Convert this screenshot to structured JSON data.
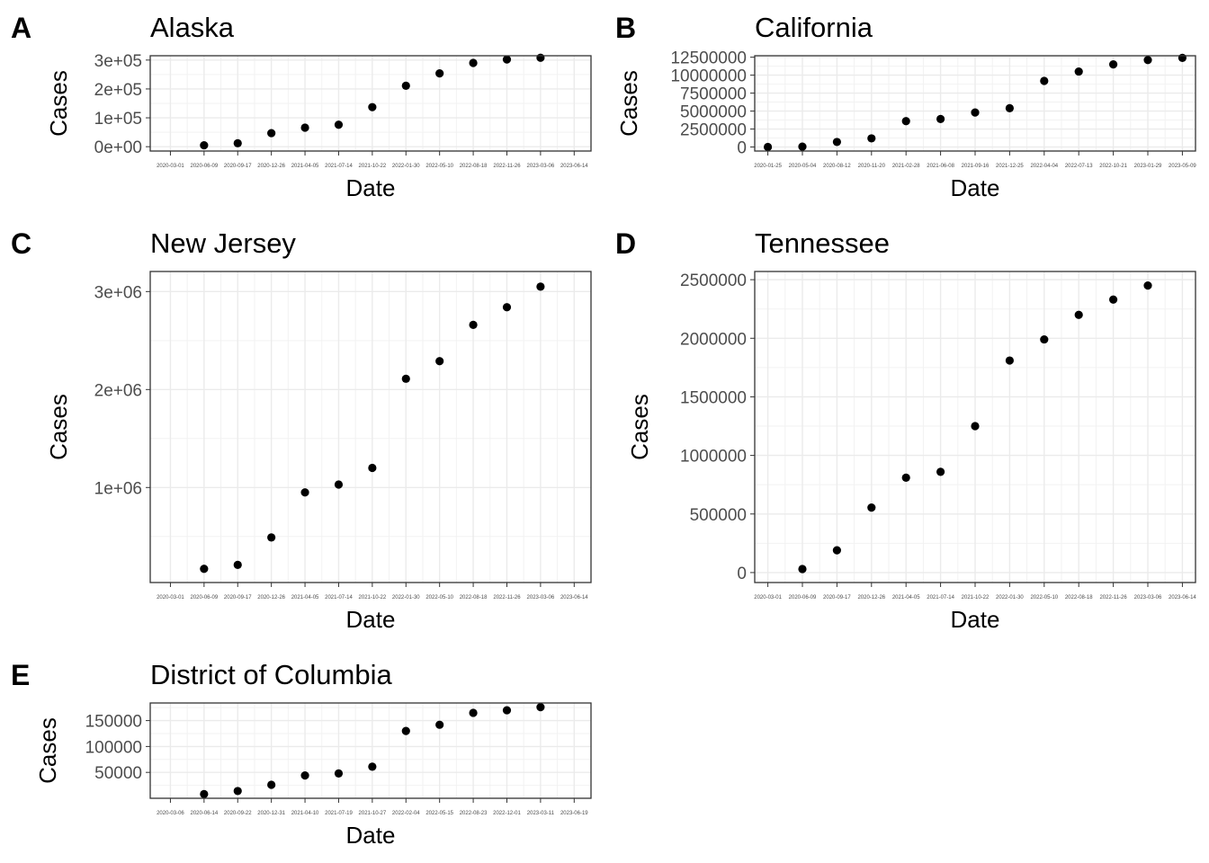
{
  "chart_data": [
    {
      "tag": "A",
      "type": "scatter",
      "title": "Alaska",
      "xlabel": "Date",
      "ylabel": "Cases",
      "x_ticks": [
        "2020-03-01",
        "2020-06-09",
        "2020-09-17",
        "2020-12-26",
        "2021-04-05",
        "2021-07-14",
        "2021-10-22",
        "2022-01-30",
        "2022-05-10",
        "2022-08-18",
        "2022-11-26",
        "2023-03-06",
        "2023-06-14"
      ],
      "y_ticks": [
        {
          "value": 0,
          "label": "0e+00"
        },
        {
          "value": 100000,
          "label": "1e+05"
        },
        {
          "value": 200000,
          "label": "2e+05"
        },
        {
          "value": 300000,
          "label": "3e+05"
        }
      ],
      "xlim": [
        -0.6,
        12.5
      ],
      "ylim": [
        -15000,
        315000
      ],
      "grid": true,
      "x": [
        "2020-06-09",
        "2020-09-17",
        "2020-12-26",
        "2021-04-05",
        "2021-07-14",
        "2021-10-22",
        "2022-01-30",
        "2022-05-10",
        "2022-08-18",
        "2022-11-26",
        "2023-03-06"
      ],
      "y": [
        5000,
        12000,
        47000,
        66000,
        76000,
        137000,
        211000,
        254000,
        290000,
        302000,
        308000
      ]
    },
    {
      "tag": "B",
      "type": "scatter",
      "title": "California",
      "xlabel": "Date",
      "ylabel": "Cases",
      "x_ticks": [
        "2020-01-25",
        "2020-05-04",
        "2020-08-12",
        "2020-11-20",
        "2021-02-28",
        "2021-06-08",
        "2021-09-16",
        "2021-12-25",
        "2022-04-04",
        "2022-07-13",
        "2022-10-21",
        "2023-01-29",
        "2023-05-09"
      ],
      "y_ticks": [
        {
          "value": 0,
          "label": "0"
        },
        {
          "value": 2500000,
          "label": "2500000"
        },
        {
          "value": 5000000,
          "label": "5000000"
        },
        {
          "value": 7500000,
          "label": "7500000"
        },
        {
          "value": 10000000,
          "label": "10000000"
        },
        {
          "value": 12500000,
          "label": "12500000"
        }
      ],
      "xlim": [
        -0.38,
        12.38
      ],
      "ylim": [
        -560000,
        12700000
      ],
      "grid": true,
      "x": [
        "2020-01-25",
        "2020-05-04",
        "2020-08-12",
        "2020-11-20",
        "2021-02-28",
        "2021-06-08",
        "2021-09-16",
        "2021-12-25",
        "2022-04-04",
        "2022-07-13",
        "2022-10-21",
        "2023-01-29",
        "2023-05-09"
      ],
      "y": [
        0,
        50000,
        700000,
        1200000,
        3600000,
        3900000,
        4800000,
        5400000,
        9200000,
        10500000,
        11500000,
        12100000,
        12400000
      ]
    },
    {
      "tag": "C",
      "type": "scatter",
      "title": "New Jersey",
      "xlabel": "Date",
      "ylabel": "Cases",
      "x_ticks": [
        "2020-03-01",
        "2020-06-09",
        "2020-09-17",
        "2020-12-26",
        "2021-04-05",
        "2021-07-14",
        "2021-10-22",
        "2022-01-30",
        "2022-05-10",
        "2022-08-18",
        "2022-11-26",
        "2023-03-06",
        "2023-06-14"
      ],
      "y_ticks": [
        {
          "value": 1000000,
          "label": "1e+06"
        },
        {
          "value": 2000000,
          "label": "2e+06"
        },
        {
          "value": 3000000,
          "label": "3e+06"
        }
      ],
      "xlim": [
        -0.6,
        12.5
      ],
      "ylim": [
        30000,
        3205000
      ],
      "grid": true,
      "x": [
        "2020-06-09",
        "2020-09-17",
        "2020-12-26",
        "2021-04-05",
        "2021-07-14",
        "2021-10-22",
        "2022-01-30",
        "2022-05-10",
        "2022-08-18",
        "2022-11-26",
        "2023-03-06"
      ],
      "y": [
        170000,
        210000,
        490000,
        950000,
        1030000,
        1200000,
        2110000,
        2290000,
        2660000,
        2840000,
        3050000
      ]
    },
    {
      "tag": "D",
      "type": "scatter",
      "title": "Tennessee",
      "xlabel": "Date",
      "ylabel": "Cases",
      "x_ticks": [
        "2020-03-01",
        "2020-06-09",
        "2020-09-17",
        "2020-12-26",
        "2021-04-05",
        "2021-07-14",
        "2021-10-22",
        "2022-01-30",
        "2022-05-10",
        "2022-08-18",
        "2022-11-26",
        "2023-03-06",
        "2023-06-14"
      ],
      "y_ticks": [
        {
          "value": 0,
          "label": "0"
        },
        {
          "value": 500000,
          "label": "500000"
        },
        {
          "value": 1000000,
          "label": "1000000"
        },
        {
          "value": 1500000,
          "label": "1500000"
        },
        {
          "value": 2000000,
          "label": "2000000"
        },
        {
          "value": 2500000,
          "label": "2500000"
        }
      ],
      "xlim": [
        -0.38,
        12.38
      ],
      "ylim": [
        -85000,
        2570000
      ],
      "grid": true,
      "x": [
        "2020-06-09",
        "2020-09-17",
        "2020-12-26",
        "2021-04-05",
        "2021-07-14",
        "2021-10-22",
        "2022-01-30",
        "2022-05-10",
        "2022-08-18",
        "2022-11-26",
        "2023-03-06"
      ],
      "y": [
        30000,
        190000,
        555000,
        810000,
        860000,
        1250000,
        1810000,
        1990000,
        2200000,
        2330000,
        2450000
      ]
    },
    {
      "tag": "E",
      "type": "scatter",
      "title": "District of Columbia",
      "xlabel": "Date",
      "ylabel": "Cases",
      "x_ticks": [
        "2020-03-06",
        "2020-06-14",
        "2020-09-22",
        "2020-12-31",
        "2021-04-10",
        "2021-07-19",
        "2021-10-27",
        "2022-02-04",
        "2022-05-15",
        "2022-08-23",
        "2022-12-01",
        "2023-03-11",
        "2023-06-19"
      ],
      "y_ticks": [
        {
          "value": 50000,
          "label": "50000"
        },
        {
          "value": 100000,
          "label": "100000"
        },
        {
          "value": 150000,
          "label": "150000"
        }
      ],
      "xlim": [
        -0.6,
        12.5
      ],
      "ylim": [
        0,
        184000
      ],
      "grid": true,
      "x": [
        "2020-06-14",
        "2020-09-22",
        "2020-12-31",
        "2021-04-10",
        "2021-07-19",
        "2021-10-27",
        "2022-02-04",
        "2022-05-15",
        "2022-08-23",
        "2022-12-01",
        "2023-03-11"
      ],
      "y": [
        8000,
        14000,
        26000,
        44000,
        48000,
        61000,
        130000,
        142000,
        165000,
        170000,
        176000
      ]
    }
  ]
}
